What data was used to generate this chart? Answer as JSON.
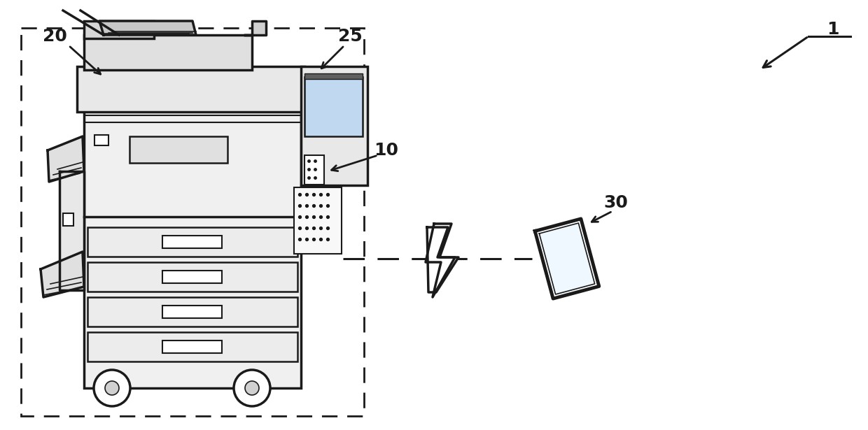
{
  "bg_color": "#ffffff",
  "line_color": "#1a1a1a",
  "font_size_label": 18
}
